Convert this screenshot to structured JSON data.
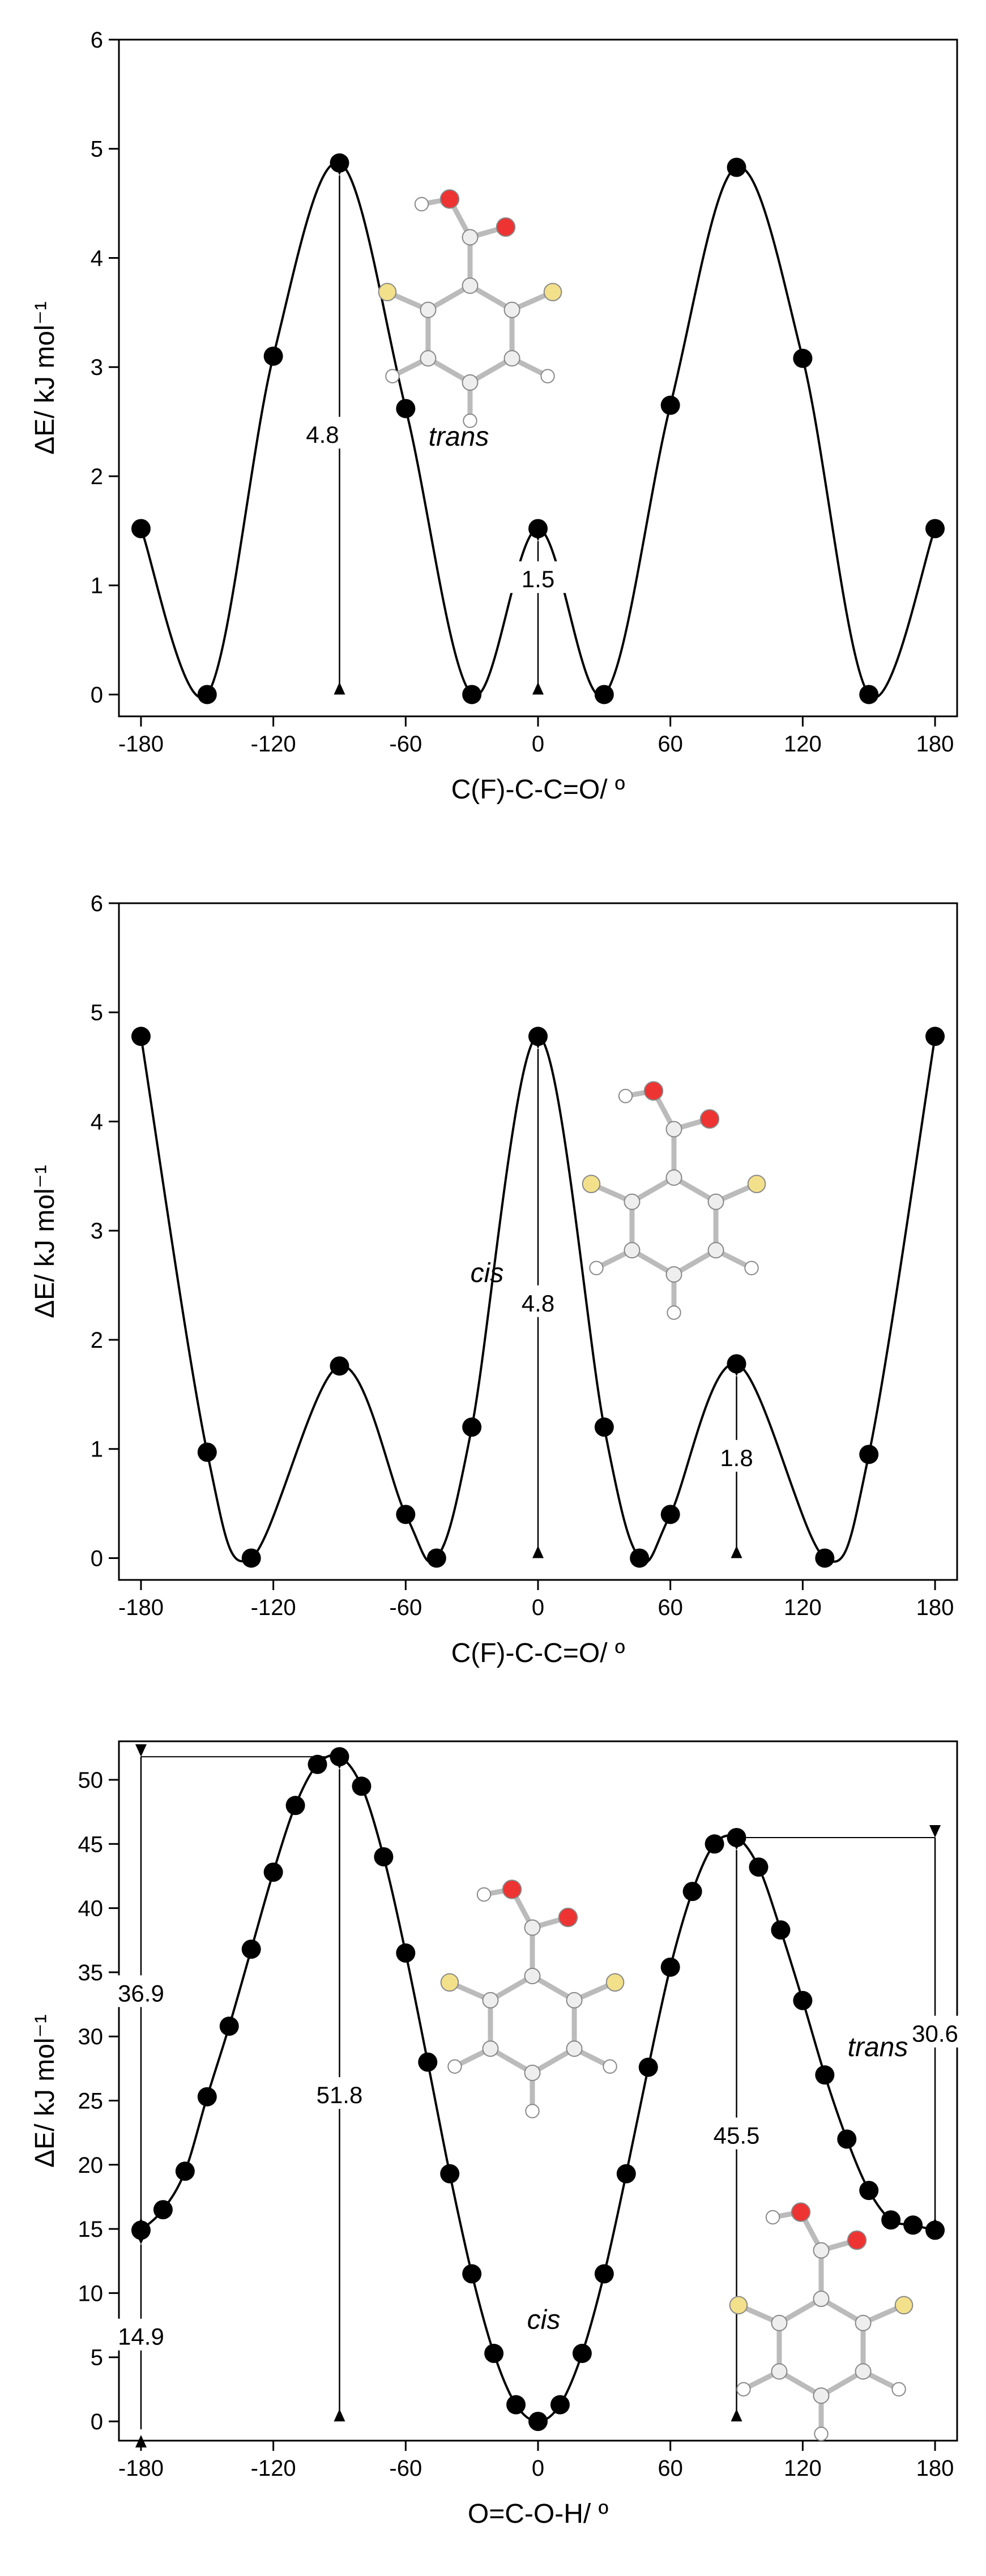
{
  "chart_data": [
    {
      "type": "line",
      "x_label": "C(F)-C-C=O/ º",
      "y_label": "ΔE/ kJ mol⁻¹",
      "color": "#000000",
      "x": [
        -180,
        -150,
        -120,
        -90,
        -60,
        -30,
        0,
        30,
        60,
        90,
        120,
        150,
        180
      ],
      "values": [
        1.52,
        0,
        3.1,
        4.87,
        2.62,
        0,
        1.52,
        0,
        2.65,
        4.83,
        3.08,
        0,
        1.52
      ],
      "xlim": [
        -190,
        190
      ],
      "ylim": [
        -0.2,
        6
      ],
      "xticks": [
        -180,
        -120,
        -60,
        0,
        60,
        120,
        180
      ],
      "yticks": [
        0,
        1,
        2,
        3,
        4,
        5,
        6
      ],
      "annotations": [
        "4.8",
        "1.5",
        "trans"
      ]
    },
    {
      "type": "line",
      "x_label": "C(F)-C-C=O/ º",
      "y_label": "ΔE/ kJ mol⁻¹",
      "color": "#000000",
      "x": [
        -180,
        -150,
        -130,
        -90,
        -60,
        -46,
        -30,
        0,
        30,
        46,
        60,
        90,
        130,
        150,
        180
      ],
      "values": [
        4.78,
        0.97,
        0,
        1.76,
        0.4,
        0,
        1.2,
        4.78,
        1.2,
        0,
        0.4,
        1.78,
        0,
        0.95,
        4.78
      ],
      "xlim": [
        -190,
        190
      ],
      "ylim": [
        -0.2,
        6
      ],
      "xticks": [
        -180,
        -120,
        -60,
        0,
        60,
        120,
        180
      ],
      "yticks": [
        0,
        1,
        2,
        3,
        4,
        5,
        6
      ],
      "annotations": [
        "4.8",
        "1.8",
        "cis"
      ]
    },
    {
      "type": "line",
      "x_label": "O=C-O-H/ º",
      "y_label": "ΔE/ kJ mol⁻¹",
      "color": "#000000",
      "x": [
        -180,
        -170,
        -160,
        -150,
        -140,
        -130,
        -120,
        -110,
        -100,
        -90,
        -80,
        -70,
        -60,
        -50,
        -40,
        -30,
        -20,
        -10,
        0,
        10,
        20,
        30,
        40,
        50,
        60,
        70,
        80,
        90,
        100,
        110,
        120,
        130,
        140,
        150,
        160,
        170,
        180
      ],
      "values": [
        14.9,
        16.5,
        19.5,
        25.3,
        30.8,
        36.8,
        42.8,
        48.0,
        51.2,
        51.8,
        49.5,
        44.0,
        36.5,
        28.0,
        19.3,
        11.5,
        5.3,
        1.3,
        0,
        1.3,
        5.3,
        11.5,
        19.3,
        27.6,
        35.4,
        41.3,
        45.0,
        45.5,
        43.2,
        38.3,
        32.8,
        27.0,
        22.0,
        18.0,
        15.7,
        15.3,
        14.9
      ],
      "xlim": [
        -190,
        190
      ],
      "ylim": [
        -1.5,
        53
      ],
      "xticks": [
        -180,
        -120,
        -60,
        0,
        60,
        120,
        180
      ],
      "yticks": [
        0,
        5,
        10,
        15,
        20,
        25,
        30,
        35,
        40,
        45,
        50
      ],
      "annotations": [
        "36.9",
        "51.8",
        "45.5",
        "30.6",
        "14.9",
        "cis",
        "trans"
      ]
    }
  ]
}
